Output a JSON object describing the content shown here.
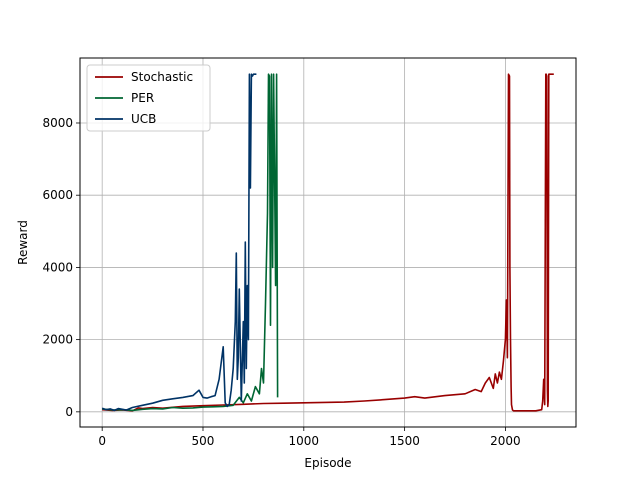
{
  "chart_data": {
    "type": "line",
    "title": "",
    "xlabel": "Episode",
    "ylabel": "Reward",
    "xlim": [
      -110,
      2350
    ],
    "ylim": [
      -420,
      9800
    ],
    "xticks": [
      0,
      500,
      1000,
      1500,
      2000
    ],
    "yticks": [
      0,
      2000,
      4000,
      6000,
      8000
    ],
    "xtick_labels": [
      "0",
      "500",
      "1000",
      "1500",
      "2000"
    ],
    "ytick_labels": [
      "0",
      "2000",
      "4000",
      "6000",
      "8000"
    ],
    "grid": true,
    "legend_position": "top-left",
    "series": [
      {
        "name": "Stochastic",
        "color": "#990000",
        "x": [
          0,
          50,
          100,
          150,
          180,
          200,
          250,
          300,
          400,
          500,
          600,
          700,
          800,
          900,
          1000,
          1100,
          1200,
          1300,
          1400,
          1500,
          1550,
          1600,
          1700,
          1800,
          1850,
          1880,
          1900,
          1920,
          1940,
          1950,
          1960,
          1970,
          1980,
          1990,
          2000,
          2005,
          2010,
          2015,
          2020,
          2022,
          2025,
          2028,
          2030,
          2035,
          2040,
          2100,
          2150,
          2180,
          2185,
          2190,
          2195,
          2200,
          2202,
          2205,
          2208,
          2210,
          2212,
          2215,
          2220,
          2230,
          2240
        ],
        "y": [
          60,
          40,
          50,
          30,
          110,
          90,
          120,
          100,
          150,
          170,
          190,
          210,
          230,
          240,
          250,
          260,
          270,
          300,
          340,
          380,
          420,
          380,
          450,
          500,
          620,
          560,
          800,
          950,
          650,
          1050,
          800,
          1100,
          900,
          1400,
          2000,
          3100,
          1500,
          9350,
          9300,
          4000,
          2000,
          700,
          200,
          50,
          30,
          30,
          30,
          60,
          300,
          900,
          200,
          9350,
          9350,
          9300,
          600,
          150,
          300,
          9350,
          9350,
          9350,
          9350
        ]
      },
      {
        "name": "PER",
        "color": "#006633",
        "x": [
          0,
          50,
          100,
          150,
          200,
          250,
          300,
          350,
          400,
          450,
          500,
          550,
          600,
          650,
          680,
          700,
          720,
          740,
          760,
          780,
          790,
          800,
          810,
          820,
          825,
          830,
          835,
          840,
          845,
          850,
          855,
          860,
          865,
          870
        ],
        "y": [
          80,
          50,
          60,
          40,
          70,
          90,
          80,
          120,
          100,
          110,
          130,
          140,
          150,
          180,
          400,
          250,
          500,
          300,
          700,
          500,
          1200,
          800,
          3000,
          5500,
          9350,
          9300,
          2400,
          9350,
          4000,
          9350,
          6500,
          3500,
          9350,
          400
        ]
      },
      {
        "name": "UCB",
        "color": "#003366",
        "x": [
          0,
          20,
          40,
          60,
          80,
          100,
          120,
          150,
          200,
          250,
          300,
          350,
          400,
          450,
          480,
          500,
          520,
          540,
          560,
          580,
          600,
          610,
          620,
          630,
          640,
          650,
          660,
          665,
          670,
          675,
          680,
          690,
          700,
          705,
          710,
          715,
          720,
          725,
          730,
          735,
          740,
          745,
          750,
          755,
          760,
          765
        ],
        "y": [
          100,
          60,
          80,
          40,
          90,
          70,
          50,
          120,
          180,
          240,
          320,
          360,
          400,
          450,
          600,
          400,
          380,
          420,
          450,
          900,
          1800,
          250,
          150,
          200,
          600,
          1200,
          2500,
          4400,
          900,
          1500,
          3400,
          300,
          2500,
          800,
          4700,
          1200,
          3500,
          2000,
          9350,
          6200,
          9350,
          9300,
          9350,
          9350,
          9350,
          9350
        ]
      }
    ]
  }
}
